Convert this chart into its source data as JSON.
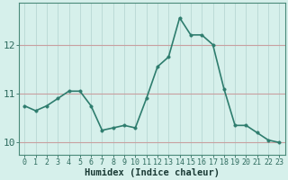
{
  "x": [
    0,
    1,
    2,
    3,
    4,
    5,
    6,
    7,
    8,
    9,
    10,
    11,
    12,
    13,
    14,
    15,
    16,
    17,
    18,
    19,
    20,
    21,
    22,
    23
  ],
  "y": [
    10.75,
    10.65,
    10.75,
    10.9,
    11.05,
    11.05,
    10.75,
    10.25,
    10.3,
    10.35,
    10.3,
    10.9,
    11.55,
    11.75,
    12.55,
    12.2,
    12.2,
    12.0,
    11.1,
    10.35,
    10.35,
    10.2,
    10.05,
    10.0
  ],
  "line_color": "#2e7d6e",
  "marker": "o",
  "marker_size": 2.5,
  "bg_color": "#d6f0eb",
  "hgrid_color": "#c8a0a0",
  "vgrid_color": "#b8d8d4",
  "xlabel": "Humidex (Indice chaleur)",
  "xlim": [
    -0.5,
    23.5
  ],
  "ylim": [
    9.75,
    12.85
  ],
  "yticks": [
    10,
    11,
    12
  ],
  "xticks": [
    0,
    1,
    2,
    3,
    4,
    5,
    6,
    7,
    8,
    9,
    10,
    11,
    12,
    13,
    14,
    15,
    16,
    17,
    18,
    19,
    20,
    21,
    22,
    23
  ],
  "tick_color": "#2e6b5e",
  "spine_color": "#4a8a7a",
  "xlabel_color": "#1a3a35",
  "xlabel_fontsize": 7.5,
  "ytick_fontsize": 8,
  "xtick_fontsize": 6
}
